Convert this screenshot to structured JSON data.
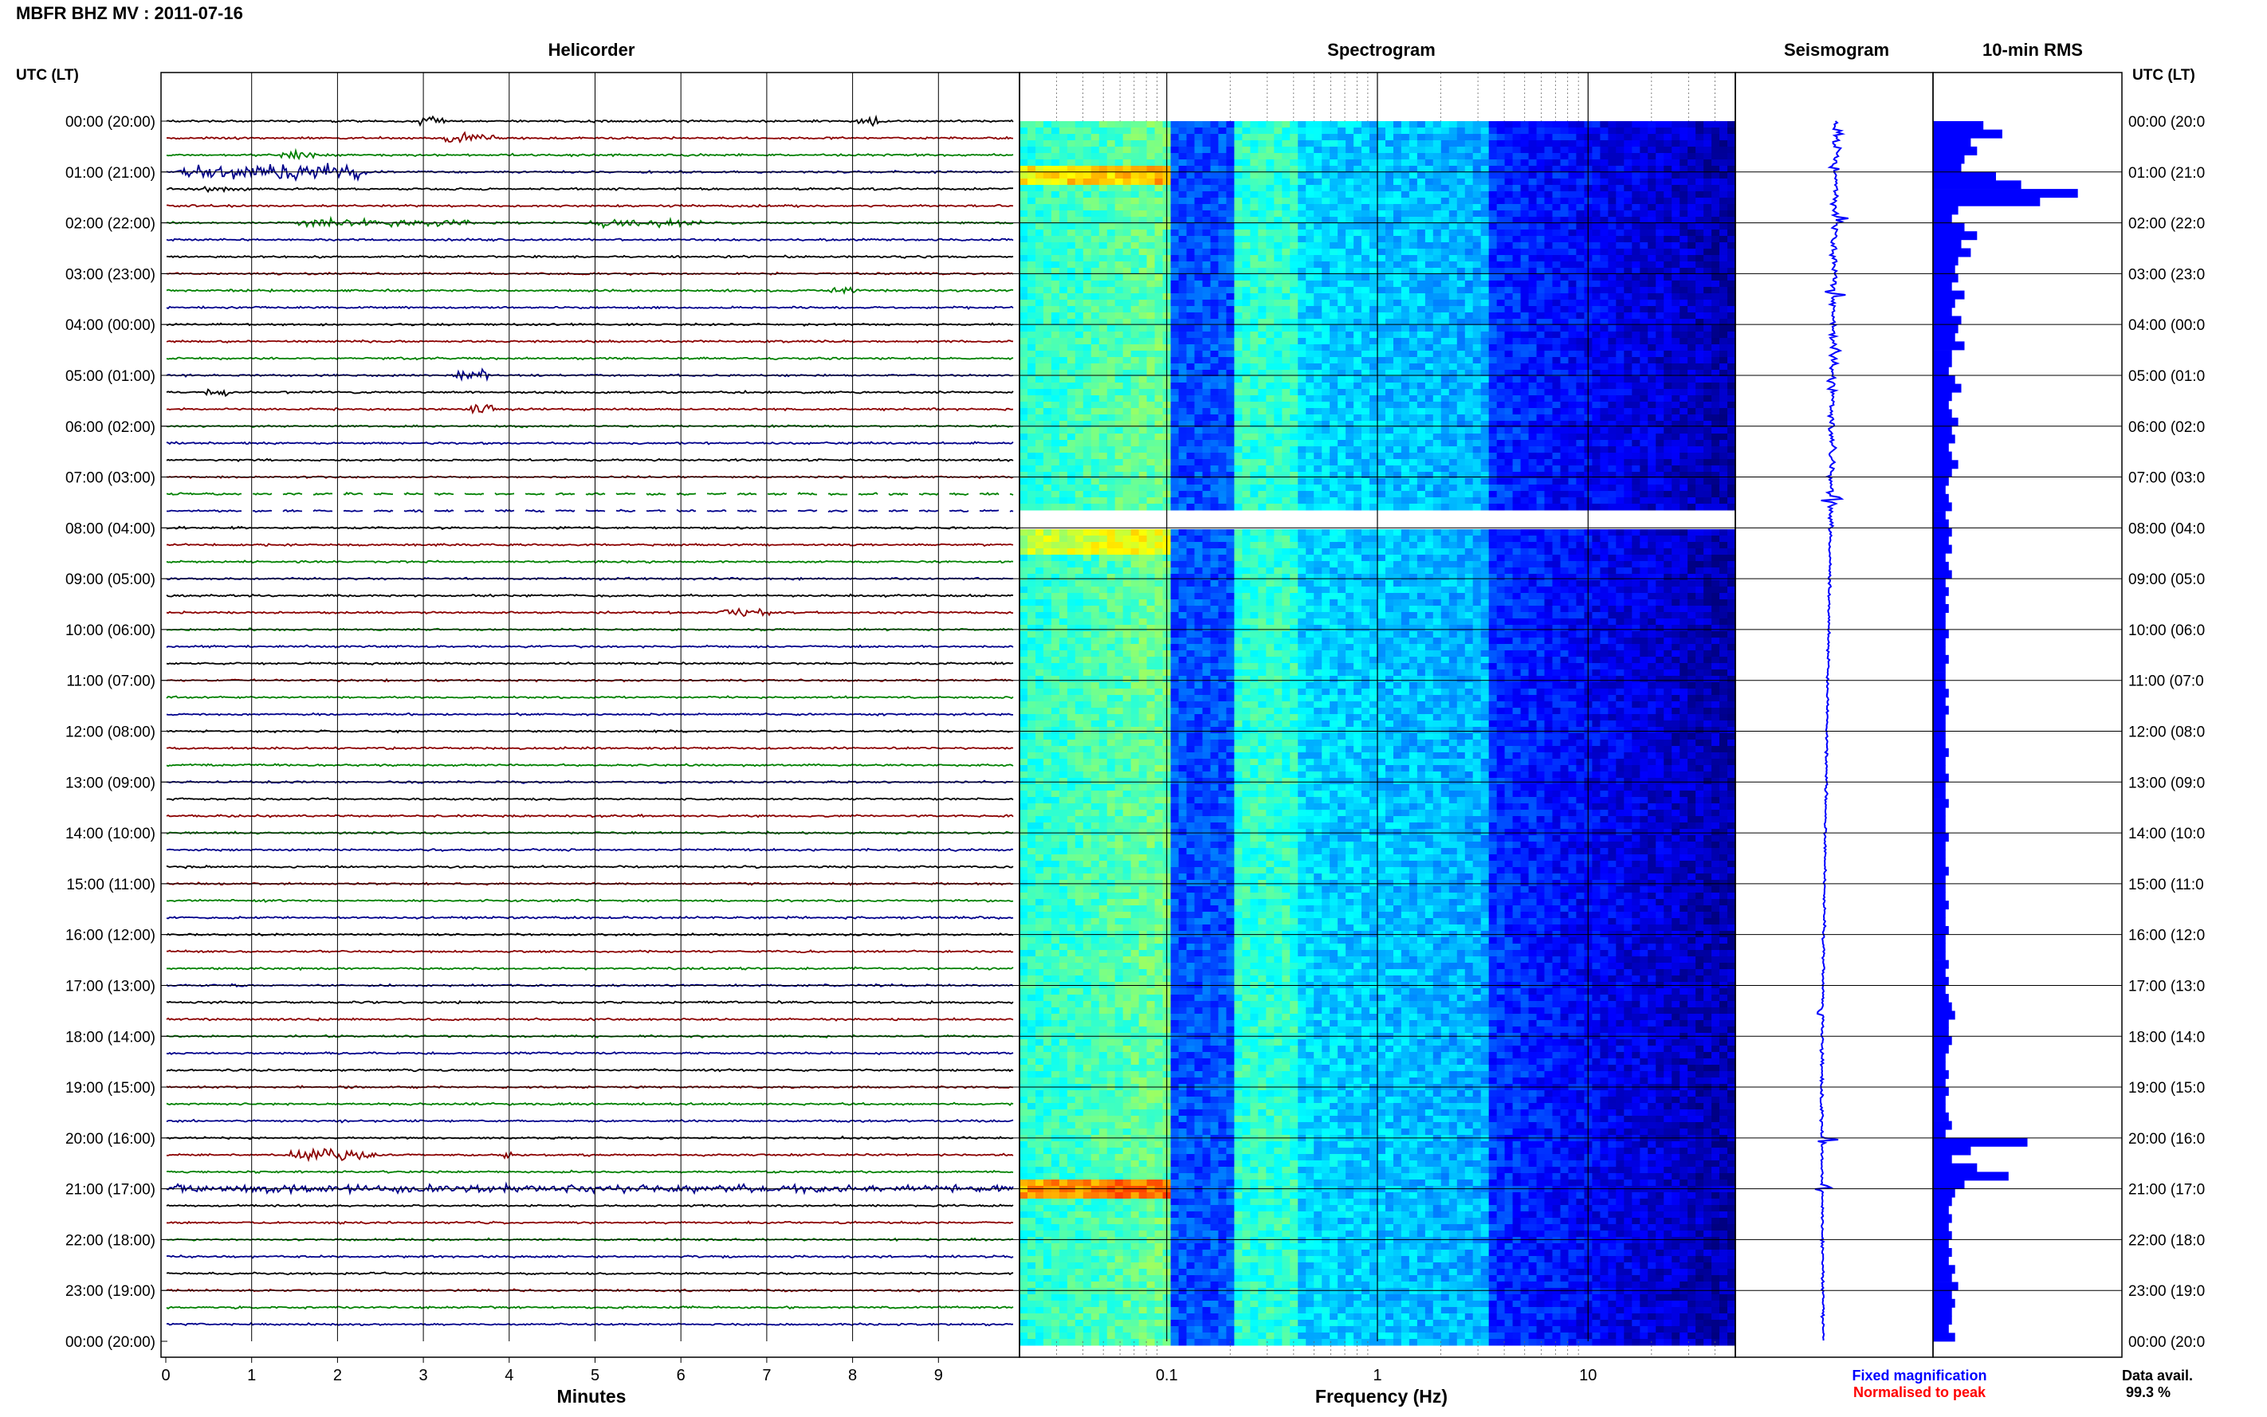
{
  "header": {
    "title": "MBFR BHZ MV : 2011-07-16"
  },
  "panels": {
    "helicorder": "Helicorder",
    "spectrogram": "Spectrogram",
    "seismogram": "Seismogram",
    "rms": "10-min RMS"
  },
  "axis_labels": {
    "time_left": "UTC (LT)",
    "time_right": "UTC (LT)",
    "minutes": "Minutes",
    "frequency": "Frequency (Hz)"
  },
  "legend": {
    "fixed": "Fixed magnification",
    "normalised": "Normalised to peak",
    "fixed_color": "#0000ff",
    "normalised_color": "#ff0000"
  },
  "data_availability": {
    "label": "Data avail.",
    "value": "99.3 %"
  },
  "colors": {
    "helicorder_traces": [
      "#000000",
      "#8b0000",
      "#008000",
      "#00008b"
    ],
    "seismogram": "#0000ff",
    "rms_bars": "#0000ff",
    "spectrogram_low": "#00008f",
    "spectrogram_high": "#ffff00"
  },
  "chart_data": [
    {
      "type": "line",
      "name": "helicorder",
      "xlabel": "Minutes",
      "x_ticks": [
        "0",
        "1",
        "2",
        "3",
        "4",
        "5",
        "6",
        "7",
        "8",
        "9"
      ],
      "xlim": [
        0,
        10
      ],
      "y_ticks_left": [
        "00:00 (20:00)",
        "01:00 (21:00)",
        "02:00 (22:00)",
        "03:00 (23:00)",
        "04:00 (00:00)",
        "05:00 (01:00)",
        "06:00 (02:00)",
        "07:00 (03:00)",
        "08:00 (04:00)",
        "09:00 (05:00)",
        "10:00 (06:00)",
        "11:00 (07:00)",
        "12:00 (08:00)",
        "13:00 (09:00)",
        "14:00 (10:00)",
        "15:00 (11:00)",
        "16:00 (12:00)",
        "17:00 (13:00)",
        "18:00 (14:00)",
        "19:00 (15:00)",
        "20:00 (16:00)",
        "21:00 (17:00)",
        "22:00 (18:00)",
        "23:00 (19:00)",
        "00:00 (20:00)"
      ],
      "y_ticks_right": [
        "00:00 (20:0",
        "01:00 (21:0",
        "02:00 (22:0",
        "03:00 (23:0",
        "04:00 (00:0",
        "05:00 (01:0",
        "06:00 (02:0",
        "07:00 (03:0",
        "08:00 (04:0",
        "09:00 (05:0",
        "10:00 (06:0",
        "11:00 (07:0",
        "12:00 (08:0",
        "13:00 (09:0",
        "14:00 (10:0",
        "15:00 (11:0",
        "16:00 (12:0",
        "17:00 (13:0",
        "18:00 (14:0",
        "19:00 (15:0",
        "20:00 (16:0",
        "21:00 (17:0",
        "22:00 (18:0",
        "23:00 (19:0",
        "00:00 (20:0"
      ],
      "grid": true
    },
    {
      "type": "heatmap",
      "name": "spectrogram",
      "xlabel": "Frequency (Hz)",
      "x_scale": "log",
      "xlim": [
        0.02,
        50
      ],
      "x_ticks": [
        "0.1",
        "1",
        "10"
      ],
      "x_tick_values": [
        0.1,
        1,
        10
      ],
      "gap_hours": [
        7.55,
        7.95
      ],
      "colormap": "jet"
    },
    {
      "type": "line",
      "name": "seismogram",
      "events_hours": [
        0.2,
        0.9,
        1.95,
        3.4,
        4.5,
        7.45,
        17.5,
        20.05,
        21.0
      ]
    },
    {
      "type": "bar",
      "name": "rms",
      "orientation": "horizontal",
      "bins_per_hour": 6,
      "values": [
        0.16,
        0.22,
        0.12,
        0.14,
        0.1,
        0.09,
        0.2,
        0.28,
        0.46,
        0.34,
        0.08,
        0.06,
        0.1,
        0.14,
        0.09,
        0.12,
        0.08,
        0.07,
        0.08,
        0.06,
        0.1,
        0.07,
        0.06,
        0.09,
        0.08,
        0.07,
        0.1,
        0.06,
        0.06,
        0.05,
        0.07,
        0.09,
        0.06,
        0.05,
        0.06,
        0.08,
        0.06,
        0.07,
        0.05,
        0.06,
        0.08,
        0.06,
        0.05,
        0.04,
        0.05,
        0.06,
        0.04,
        0.05,
        0.06,
        0.05,
        0.06,
        0.04,
        0.05,
        0.06,
        0.04,
        0.05,
        0.04,
        0.05,
        0.04,
        0.04,
        0.05,
        0.04,
        0.04,
        0.05,
        0.04,
        0.04,
        0.04,
        0.05,
        0.04,
        0.05,
        0.04,
        0.04,
        0.04,
        0.04,
        0.05,
        0.04,
        0.04,
        0.05,
        0.04,
        0.04,
        0.05,
        0.04,
        0.04,
        0.04,
        0.05,
        0.04,
        0.04,
        0.04,
        0.05,
        0.04,
        0.04,
        0.04,
        0.05,
        0.04,
        0.04,
        0.05,
        0.04,
        0.04,
        0.04,
        0.05,
        0.04,
        0.05,
        0.04,
        0.05,
        0.06,
        0.07,
        0.05,
        0.05,
        0.06,
        0.05,
        0.04,
        0.04,
        0.05,
        0.04,
        0.05,
        0.04,
        0.04,
        0.05,
        0.06,
        0.04,
        0.3,
        0.12,
        0.06,
        0.14,
        0.24,
        0.1,
        0.07,
        0.06,
        0.05,
        0.06,
        0.05,
        0.06,
        0.05,
        0.06,
        0.05,
        0.07,
        0.06,
        0.08,
        0.06,
        0.07,
        0.06,
        0.06,
        0.05,
        0.07
      ],
      "xlim": [
        0,
        0.6
      ]
    }
  ]
}
